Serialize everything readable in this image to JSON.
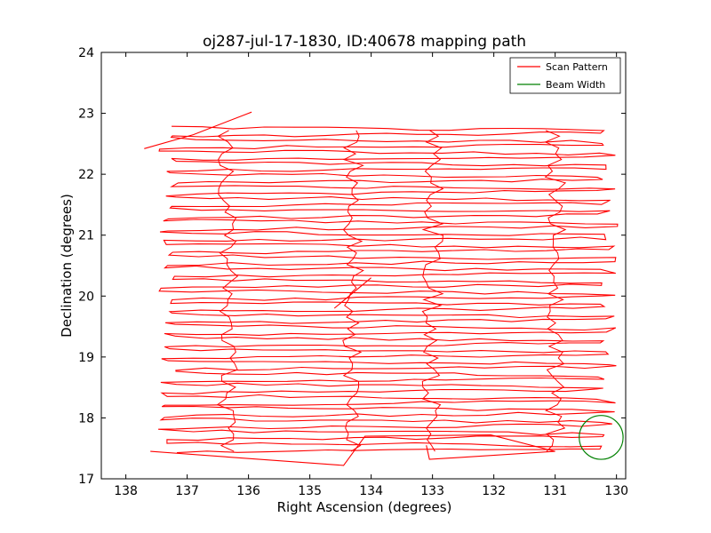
{
  "chart_data": {
    "type": "line",
    "title": "oj287-jul-17-1830, ID:40678 mapping path",
    "xlabel": "Right Ascension (degrees)",
    "ylabel": "Declination (degrees)",
    "xlim": [
      138.4,
      129.85
    ],
    "ylim": [
      17,
      24
    ],
    "x_inverted": true,
    "xticks": [
      "138",
      "137",
      "136",
      "135",
      "134",
      "133",
      "132",
      "131",
      "130"
    ],
    "yticks": [
      "17",
      "18",
      "19",
      "20",
      "21",
      "22",
      "23",
      "24"
    ],
    "grid": false,
    "legend": {
      "position": "top-right"
    },
    "series": [
      {
        "name": "Scan Pattern",
        "color": "#ff0000",
        "description_free": true,
        "scan": {
          "ra_east": 137.25,
          "ra_west": 130.15,
          "dec_start": 17.45,
          "dec_end": 22.72,
          "row_count": 56
        },
        "extra_points": [
          {
            "x": 137.6,
            "y": 17.45
          },
          {
            "x": 134.45,
            "y": 17.22
          },
          {
            "x": 134.1,
            "y": 17.7
          },
          {
            "x": 132.05,
            "y": 17.72
          },
          {
            "x": 131.0,
            "y": 17.45
          },
          {
            "x": 133.05,
            "y": 17.32
          },
          {
            "x": 133.1,
            "y": 17.55
          },
          {
            "x": 135.95,
            "y": 23.02
          },
          {
            "x": 136.9,
            "y": 22.65
          },
          {
            "x": 137.7,
            "y": 22.42
          },
          {
            "x": 134.6,
            "y": 19.8
          },
          {
            "x": 134.0,
            "y": 20.3
          }
        ]
      },
      {
        "name": "Beam Width",
        "color": "#008000",
        "shape": "circle",
        "center": {
          "x": 130.25,
          "y": 17.68
        },
        "radius_dec": 0.36
      }
    ]
  }
}
